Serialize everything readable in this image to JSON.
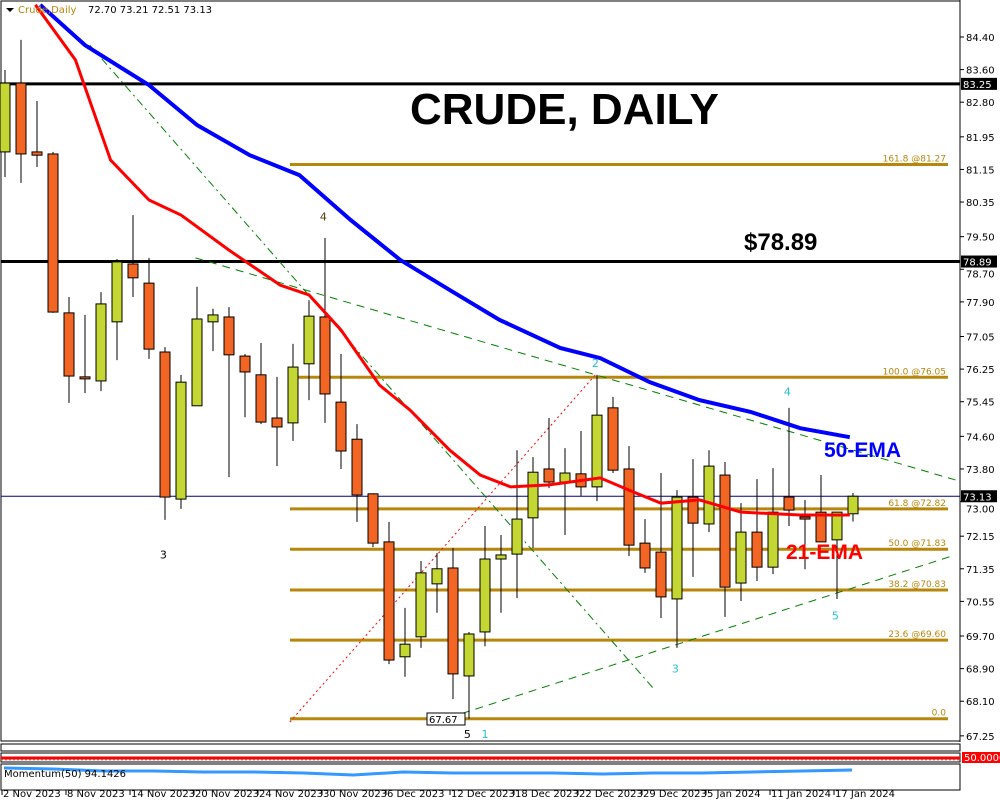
{
  "header": {
    "symbol": "Crude,Daily",
    "ohlc": "72.70 73.21 72.51 73.13"
  },
  "annotations": {
    "title": "CRUDE, DAILY",
    "price_note": "$78.89",
    "ema50_label": "50-EMA",
    "ema21_label": "21-EMA",
    "low_box": "67.67"
  },
  "colors": {
    "bull": "#c3d631",
    "bear": "#f26522",
    "ema50": "#0000ff",
    "ema21": "#ff0000",
    "fib": "#b8860b",
    "trend": "#008000",
    "wave": "#20c0d0"
  },
  "chart_data": {
    "type": "candlestick",
    "ylim": [
      67.0,
      85.2
    ],
    "y_ticks": [
      "84.40",
      "83.60",
      "82.80",
      "81.95",
      "81.15",
      "80.35",
      "79.50",
      "78.70",
      "77.90",
      "77.05",
      "76.25",
      "75.45",
      "74.60",
      "73.80",
      "73.00",
      "72.15",
      "71.35",
      "70.55",
      "69.70",
      "68.90",
      "68.10",
      "67.25"
    ],
    "x_labels": [
      {
        "bar": 0,
        "label": "2 Nov 2023"
      },
      {
        "bar": 4,
        "label": "8 Nov 2023"
      },
      {
        "bar": 8,
        "label": "14 Nov 2023"
      },
      {
        "bar": 12,
        "label": "20 Nov 2023"
      },
      {
        "bar": 16,
        "label": "24 Nov 2023"
      },
      {
        "bar": 20,
        "label": "30 Nov 2023"
      },
      {
        "bar": 24,
        "label": "6 Dec 2023"
      },
      {
        "bar": 28,
        "label": "12 Dec 2023"
      },
      {
        "bar": 32,
        "label": "18 Dec 2023"
      },
      {
        "bar": 36,
        "label": "22 Dec 2023"
      },
      {
        "bar": 40,
        "label": "29 Dec 2023"
      },
      {
        "bar": 44,
        "label": "5 Jan 2024"
      },
      {
        "bar": 48,
        "label": "11 Jan 2024"
      },
      {
        "bar": 52,
        "label": "17 Jan 2024"
      }
    ],
    "candles_ohlc": [
      [
        81.58,
        83.59,
        80.96,
        83.27
      ],
      [
        83.27,
        84.33,
        80.82,
        81.53
      ],
      [
        81.58,
        82.83,
        81.21,
        81.5
      ],
      [
        81.53,
        81.58,
        77.63,
        77.65
      ],
      [
        77.63,
        78.02,
        75.42,
        76.08
      ],
      [
        76.06,
        77.58,
        75.66,
        76.01
      ],
      [
        75.96,
        78.14,
        75.71,
        77.85
      ],
      [
        77.41,
        78.95,
        76.47,
        78.88
      ],
      [
        78.83,
        80.03,
        78.02,
        78.49
      ],
      [
        78.36,
        78.98,
        76.5,
        76.74
      ],
      [
        76.67,
        76.79,
        72.55,
        73.11
      ],
      [
        73.06,
        76.11,
        72.82,
        75.93
      ],
      [
        75.35,
        78.27,
        75.35,
        77.48
      ],
      [
        77.41,
        77.73,
        76.69,
        77.58
      ],
      [
        77.53,
        77.77,
        73.6,
        76.6
      ],
      [
        76.57,
        76.62,
        75.07,
        76.18
      ],
      [
        76.11,
        76.89,
        74.9,
        74.95
      ],
      [
        75.05,
        76.06,
        73.87,
        74.83
      ],
      [
        74.93,
        76.87,
        74.49,
        76.3
      ],
      [
        76.38,
        77.94,
        75.49,
        77.55
      ],
      [
        77.53,
        79.47,
        74.93,
        75.64
      ],
      [
        75.44,
        76.62,
        73.8,
        74.24
      ],
      [
        74.53,
        74.9,
        72.5,
        73.16
      ],
      [
        73.19,
        73.2,
        71.88,
        71.98
      ],
      [
        72.01,
        72.5,
        69.01,
        69.11
      ],
      [
        69.19,
        70.39,
        68.7,
        69.5
      ],
      [
        69.68,
        71.54,
        69.41,
        71.25
      ],
      [
        70.98,
        71.74,
        70.27,
        71.35
      ],
      [
        71.37,
        71.86,
        68.15,
        68.77
      ],
      [
        68.72,
        69.8,
        67.67,
        69.75
      ],
      [
        69.8,
        72.4,
        69.45,
        71.59
      ],
      [
        71.59,
        72.18,
        70.27,
        71.69
      ],
      [
        71.71,
        74.26,
        70.63,
        72.57
      ],
      [
        72.6,
        74.09,
        71.86,
        73.72
      ],
      [
        73.8,
        75.05,
        73.33,
        73.48
      ],
      [
        73.48,
        74.31,
        72.18,
        73.7
      ],
      [
        73.68,
        74.73,
        73.14,
        73.36
      ],
      [
        73.36,
        76.11,
        73.01,
        75.12
      ],
      [
        75.3,
        75.57,
        73.7,
        73.77
      ],
      [
        73.8,
        74.36,
        71.66,
        71.93
      ],
      [
        71.98,
        72.57,
        71.25,
        71.37
      ],
      [
        71.76,
        73.7,
        70.14,
        70.66
      ],
      [
        70.61,
        73.28,
        69.41,
        73.11
      ],
      [
        73.11,
        74.04,
        71.15,
        72.47
      ],
      [
        72.45,
        74.26,
        72.25,
        73.87
      ],
      [
        73.65,
        73.97,
        70.17,
        70.9
      ],
      [
        71.0,
        72.96,
        70.56,
        72.25
      ],
      [
        72.25,
        73.55,
        71.05,
        71.39
      ],
      [
        71.39,
        73.82,
        71.22,
        72.74
      ],
      [
        73.11,
        75.3,
        72.4,
        72.79
      ],
      [
        72.62,
        73.04,
        71.34,
        72.57
      ],
      [
        72.74,
        73.65,
        72.01,
        72.01
      ],
      [
        72.06,
        72.74,
        70.61,
        72.74
      ],
      [
        72.7,
        73.21,
        72.51,
        73.13
      ]
    ],
    "series": [
      {
        "name": "50-EMA",
        "points": [
          [
            2.2,
            85.19
          ],
          [
            5,
            84.2
          ],
          [
            9,
            83.22
          ],
          [
            12,
            82.24
          ],
          [
            15.3,
            81.5
          ],
          [
            18.4,
            81.01
          ],
          [
            21.6,
            79.91
          ],
          [
            24.7,
            78.93
          ],
          [
            27.8,
            78.19
          ],
          [
            30.9,
            77.46
          ],
          [
            34.7,
            76.77
          ],
          [
            37.2,
            76.52
          ],
          [
            40.3,
            75.93
          ],
          [
            43.4,
            75.49
          ],
          [
            46.6,
            75.2
          ],
          [
            49.7,
            74.8
          ],
          [
            52.8,
            74.58
          ]
        ]
      },
      {
        "name": "21-EMA",
        "points": [
          [
            1.9,
            85.19
          ],
          [
            4.4,
            83.84
          ],
          [
            6.6,
            81.38
          ],
          [
            9,
            80.4
          ],
          [
            11,
            80.03
          ],
          [
            14,
            79.17
          ],
          [
            17.2,
            78.31
          ],
          [
            19,
            78.07
          ],
          [
            21,
            77.21
          ],
          [
            23.4,
            75.86
          ],
          [
            25.3,
            75.25
          ],
          [
            27.8,
            74.26
          ],
          [
            29.7,
            73.65
          ],
          [
            31.6,
            73.36
          ],
          [
            34,
            73.41
          ],
          [
            37.2,
            73.58
          ],
          [
            39,
            73.28
          ],
          [
            41,
            72.96
          ],
          [
            43.4,
            73.04
          ],
          [
            46,
            72.74
          ],
          [
            49.7,
            72.67
          ],
          [
            52.8,
            72.67
          ]
        ]
      }
    ],
    "horizontal_levels": [
      {
        "price": 83.25,
        "label": "83.25"
      },
      {
        "price": 78.89,
        "label": "78.89"
      }
    ],
    "current_price": {
      "price": 73.13,
      "label": "73.13"
    },
    "fibonacci": [
      {
        "label": "161.8 @81.27",
        "price": 81.27
      },
      {
        "label": "100.0 @76.05",
        "price": 76.05
      },
      {
        "label": "61.8 @72.82",
        "price": 72.82
      },
      {
        "label": "50.0 @71.83",
        "price": 71.83
      },
      {
        "label": "38.2 @70.83",
        "price": 70.83
      },
      {
        "label": "23.6 @69.60",
        "price": 69.6
      },
      {
        "label": "0.0",
        "price": 67.67
      }
    ],
    "trendlines": [
      {
        "style": "dashdot",
        "from": [
          5.3,
          84.2
        ],
        "to": [
          40.6,
          68.38
        ]
      },
      {
        "style": "dashed",
        "from": [
          11.9,
          78.98
        ],
        "to": [
          59.4,
          73.53
        ]
      },
      {
        "style": "dashed",
        "from": [
          26.9,
          67.59
        ],
        "to": [
          59.4,
          71.69
        ]
      },
      {
        "style": "dotted-red",
        "from": [
          17.8,
          67.59
        ],
        "to": [
          36.9,
          76.11
        ]
      }
    ],
    "wave_labels": [
      {
        "text": "4",
        "bar": 19.9,
        "price": 79.9,
        "color": "#5a3a10"
      },
      {
        "text": "3",
        "bar": 9.9,
        "price": 71.6,
        "color": "#000000"
      },
      {
        "text": "5",
        "bar": 28.9,
        "price": 67.2,
        "color": "#000000"
      },
      {
        "text": "1",
        "bar": 30,
        "price": 67.2,
        "color": "#20c0d0"
      },
      {
        "text": "2",
        "bar": 36.9,
        "price": 76.3,
        "color": "#20c0d0"
      },
      {
        "text": "3",
        "bar": 41.9,
        "price": 68.8,
        "color": "#20c0d0"
      },
      {
        "text": "4",
        "bar": 48.9,
        "price": 75.6,
        "color": "#20c0d0"
      },
      {
        "text": "5",
        "bar": 51.9,
        "price": 70.1,
        "color": "#20c0d0"
      }
    ]
  },
  "rsi_panel": {
    "level_label": "50.0000"
  },
  "momentum_panel": {
    "label": "Momentum(50) 94.1426",
    "values": [
      100,
      99,
      97,
      97,
      96,
      96,
      95,
      93,
      96,
      95,
      95,
      95,
      94,
      95,
      95,
      96,
      97,
      98
    ]
  }
}
